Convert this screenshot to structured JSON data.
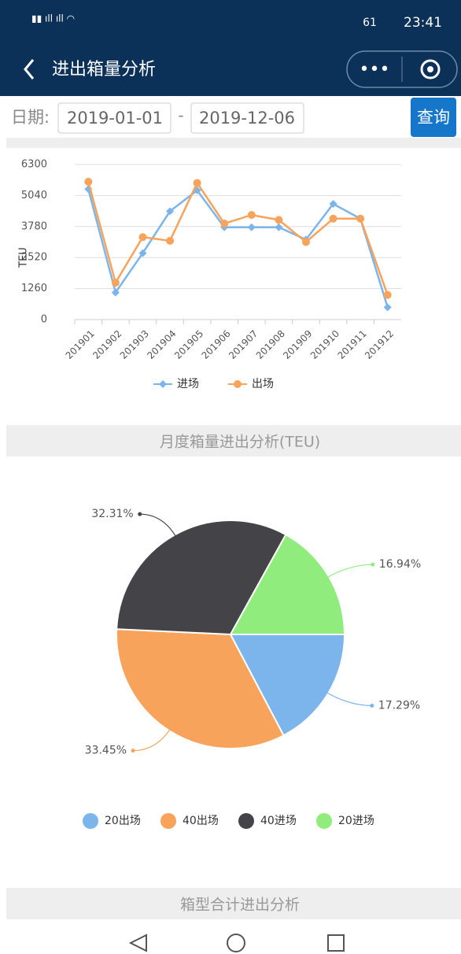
{
  "status": {
    "time": "23:41",
    "battery": "61"
  },
  "header": {
    "title": "进出箱量分析"
  },
  "filter": {
    "label": "日期:",
    "start": "2019-01-01",
    "separator": "-",
    "end": "2019-12-06",
    "button": "查询"
  },
  "sections": [
    "月度箱量进出分析(TEU)",
    "箱型合计进出分析"
  ],
  "chart_data": [
    {
      "type": "line",
      "y_label": "TEU",
      "categories": [
        "201901",
        "201902",
        "201903",
        "201904",
        "201905",
        "201906",
        "201907",
        "201908",
        "201909",
        "201910",
        "201911",
        "201912"
      ],
      "series": [
        {
          "name": "进场",
          "color": "#7cb5ec",
          "marker": "diamond",
          "values": [
            5300,
            1100,
            2700,
            4400,
            5250,
            3750,
            3750,
            3750,
            3250,
            4700,
            4100,
            500
          ]
        },
        {
          "name": "出场",
          "color": "#f7a35c",
          "marker": "circle",
          "values": [
            5600,
            1500,
            3350,
            3200,
            5550,
            3900,
            4250,
            4050,
            3150,
            4100,
            4100,
            1000
          ]
        }
      ],
      "ylim": [
        0,
        6300
      ],
      "yticks": [
        0,
        1260,
        2520,
        3780,
        5040,
        6300
      ],
      "grid": true,
      "legend": "bottom"
    },
    {
      "type": "pie",
      "categories": [
        "20出场",
        "40出场",
        "40进场",
        "20进场"
      ],
      "values": [
        17.29,
        33.45,
        32.31,
        16.94
      ],
      "value_labels": [
        "17.29%",
        "33.45%",
        "32.31%",
        "16.94%"
      ],
      "colors": [
        "#7cb5ec",
        "#f7a35c",
        "#434348",
        "#90ed7d"
      ],
      "legend": "bottom"
    }
  ]
}
